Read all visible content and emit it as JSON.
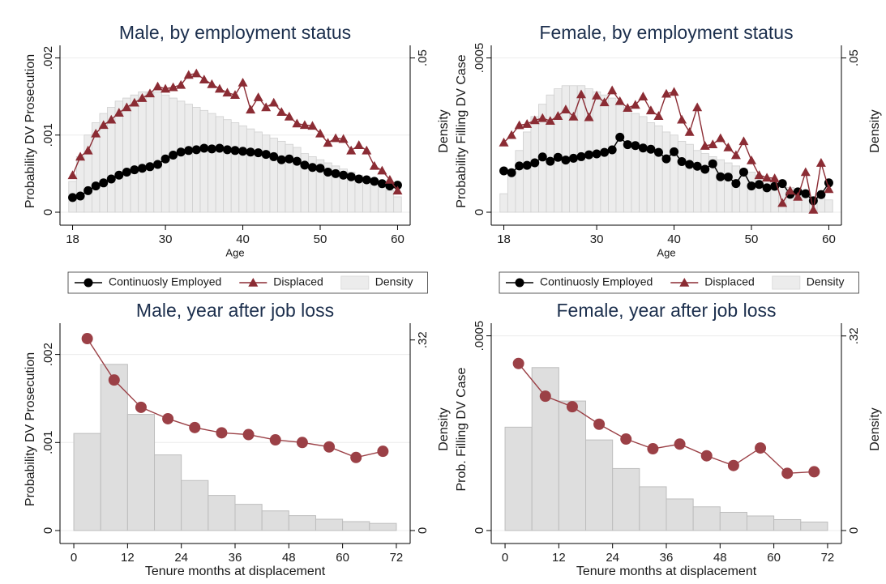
{
  "chart_data": [
    {
      "type": "combo",
      "title": "Male, by employment status",
      "y_label": "Probability DV Prosecution",
      "y2_label": "Density",
      "x_label": "Age",
      "x": [
        18,
        19,
        20,
        21,
        22,
        23,
        24,
        25,
        26,
        27,
        28,
        29,
        30,
        31,
        32,
        33,
        34,
        35,
        36,
        37,
        38,
        39,
        40,
        41,
        42,
        43,
        44,
        45,
        46,
        47,
        48,
        49,
        50,
        51,
        52,
        53,
        54,
        55,
        56,
        57,
        58,
        59,
        60
      ],
      "series": [
        {
          "name": "Continuosly Employed",
          "type": "line",
          "marker": "circle",
          "color": "#000000",
          "values": [
            0.00019,
            0.00021,
            0.00028,
            0.00034,
            0.00038,
            0.00043,
            0.00048,
            0.00052,
            0.00055,
            0.00057,
            0.00059,
            0.00062,
            0.00069,
            0.00074,
            0.00078,
            0.0008,
            0.00081,
            0.00083,
            0.00082,
            0.00083,
            0.00081,
            0.0008,
            0.00079,
            0.00078,
            0.00077,
            0.00075,
            0.00072,
            0.00068,
            0.00069,
            0.00066,
            0.00061,
            0.00058,
            0.00057,
            0.00052,
            0.0005,
            0.00048,
            0.00046,
            0.00043,
            0.00042,
            0.0004,
            0.00037,
            0.00034,
            0.00035
          ]
        },
        {
          "name": "Displaced",
          "type": "line",
          "marker": "triangle",
          "color": "#8b2c34",
          "values": [
            0.00048,
            0.00072,
            0.0008,
            0.00102,
            0.00113,
            0.0012,
            0.00129,
            0.00136,
            0.00142,
            0.00148,
            0.00154,
            0.00163,
            0.0016,
            0.00162,
            0.00165,
            0.00178,
            0.0018,
            0.00172,
            0.00166,
            0.0016,
            0.00155,
            0.00152,
            0.00168,
            0.00133,
            0.00149,
            0.00136,
            0.00142,
            0.0013,
            0.00124,
            0.00115,
            0.00113,
            0.00112,
            0.00102,
            0.0009,
            0.00096,
            0.00095,
            0.0008,
            0.00087,
            0.0008,
            0.0006,
            0.00054,
            0.00042,
            0.00028
          ]
        },
        {
          "name": "Density",
          "type": "bar",
          "axis": "y2",
          "color": "#ececec",
          "values": [
            0.01,
            0.018,
            0.025,
            0.029,
            0.032,
            0.034,
            0.036,
            0.037,
            0.038,
            0.039,
            0.039,
            0.039,
            0.038,
            0.037,
            0.036,
            0.035,
            0.034,
            0.033,
            0.032,
            0.031,
            0.03,
            0.029,
            0.028,
            0.027,
            0.026,
            0.025,
            0.024,
            0.023,
            0.022,
            0.021,
            0.019,
            0.018,
            0.017,
            0.016,
            0.015,
            0.014,
            0.013,
            0.012,
            0.011,
            0.01,
            0.008,
            0.007,
            0.005
          ]
        }
      ],
      "xlim": [
        17,
        61
      ],
      "xticks": [
        18,
        30,
        40,
        50,
        60
      ],
      "ylim": [
        0,
        0.0021
      ],
      "yticks": [
        0,
        {
          "value": 0.001,
          "label": ".001"
        },
        {
          "value": 0.002,
          "label": ".002"
        }
      ],
      "y2lim": [
        0,
        0.0525
      ],
      "y2ticks": [
        {
          "value": 0.05,
          "label": ".05"
        }
      ],
      "grid": true,
      "legend": "bottom"
    },
    {
      "type": "combo",
      "title": "Female, by employment status",
      "y_label": "Probability Filling DV Case",
      "y2_label": "Density",
      "x_label": "Age",
      "x": [
        18,
        19,
        20,
        21,
        22,
        23,
        24,
        25,
        26,
        27,
        28,
        29,
        30,
        31,
        32,
        33,
        34,
        35,
        36,
        37,
        38,
        39,
        40,
        41,
        42,
        43,
        44,
        45,
        46,
        47,
        48,
        49,
        50,
        51,
        52,
        53,
        54,
        55,
        56,
        57,
        58,
        59,
        60
      ],
      "series": [
        {
          "name": "Continuosly Employed",
          "type": "line",
          "marker": "circle",
          "color": "#000000",
          "values": [
            0.000134,
            0.000128,
            0.00015,
            0.000152,
            0.00016,
            0.000179,
            0.000165,
            0.000178,
            0.000169,
            0.000175,
            0.00018,
            0.000186,
            0.000189,
            0.000194,
            0.000202,
            0.000243,
            0.000219,
            0.000216,
            0.000208,
            0.000204,
            0.000194,
            0.000173,
            0.000196,
            0.000164,
            0.000155,
            0.000149,
            0.000139,
            0.000157,
            0.000115,
            0.000114,
            9.3e-05,
            0.00013,
            8.5e-05,
            9e-05,
            7.9e-05,
            8.4e-05,
            9.3e-05,
            5.8e-05,
            6.6e-05,
            6e-05,
            3.7e-05,
            5.7e-05,
            9.5e-05
          ]
        },
        {
          "name": "Displaced",
          "type": "line",
          "marker": "triangle",
          "color": "#8b2c34",
          "values": [
            0.000226,
            0.00025,
            0.000282,
            0.000286,
            0.000298,
            0.000305,
            0.000296,
            0.000312,
            0.000333,
            0.00031,
            0.000382,
            0.000308,
            0.000378,
            0.000356,
            0.000395,
            0.00036,
            0.000338,
            0.000348,
            0.000375,
            0.00033,
            0.000312,
            0.000384,
            0.00039,
            0.0003,
            0.00026,
            0.00034,
            0.000215,
            0.00022,
            0.00024,
            0.00021,
            0.000185,
            0.00023,
            0.000168,
            0.00012,
            0.000112,
            0.00011,
            3e-05,
            7e-05,
            5e-05,
            0.00013,
            8e-06,
            0.00016,
            7.5e-05
          ]
        },
        {
          "name": "Density",
          "type": "bar",
          "axis": "y2",
          "color": "#ececec",
          "values": [
            0.006,
            0.013,
            0.02,
            0.026,
            0.031,
            0.035,
            0.038,
            0.04,
            0.041,
            0.041,
            0.041,
            0.04,
            0.039,
            0.038,
            0.037,
            0.035,
            0.034,
            0.032,
            0.031,
            0.029,
            0.028,
            0.026,
            0.025,
            0.023,
            0.022,
            0.02,
            0.019,
            0.018,
            0.017,
            0.016,
            0.015,
            0.014,
            0.013,
            0.012,
            0.011,
            0.01,
            0.009,
            0.008,
            0.007,
            0.006,
            0.005,
            0.005,
            0.004
          ]
        }
      ],
      "xlim": [
        17,
        61
      ],
      "xticks": [
        18,
        30,
        40,
        50,
        60
      ],
      "ylim": [
        0,
        0.000525
      ],
      "yticks": [
        0,
        {
          "value": 0.0005,
          "label": ".0005"
        }
      ],
      "y2lim": [
        0,
        0.0525
      ],
      "y2ticks": [
        {
          "value": 0.05,
          "label": ".05"
        }
      ],
      "grid": true,
      "legend": "bottom"
    },
    {
      "type": "combo",
      "title": "Male, year after job loss",
      "y_label": "Probability DV Prosecution",
      "y2_label": "Density",
      "x_label": "Tenure months at displacement",
      "x": [
        3,
        9,
        15,
        21,
        27,
        33,
        39,
        45,
        51,
        57,
        63,
        69
      ],
      "series": [
        {
          "type": "line",
          "marker": "circle",
          "color": "#9b4046",
          "values": [
            0.00218,
            0.00171,
            0.0014,
            0.00127,
            0.00117,
            0.00111,
            0.00109,
            0.00103,
            0.001,
            0.00095,
            0.00083,
            0.0009
          ]
        },
        {
          "type": "histogram",
          "axis": "y2",
          "color": "#dedede",
          "bins": [
            0,
            6,
            12,
            18,
            24,
            30,
            36,
            42,
            48,
            54,
            60,
            66,
            72
          ],
          "values": [
            0.163,
            0.279,
            0.195,
            0.127,
            0.084,
            0.059,
            0.044,
            0.033,
            0.025,
            0.019,
            0.015,
            0.012
          ]
        }
      ],
      "xlim": [
        -2,
        74
      ],
      "xticks": [
        0,
        12,
        24,
        36,
        48,
        60,
        72
      ],
      "ylim": [
        0,
        0.0023
      ],
      "yticks": [
        0,
        {
          "value": 0.001,
          "label": ".001"
        },
        {
          "value": 0.002,
          "label": ".002"
        }
      ],
      "y2lim": [
        0,
        0.34
      ],
      "y2ticks": [
        0,
        {
          "value": 0.32,
          "label": ".32"
        }
      ],
      "grid": true
    },
    {
      "type": "combo",
      "title": "Female, year after job loss",
      "y_label": "Prob. Filling DV Case",
      "y2_label": "Density",
      "x_label": "Tenure months at displacement",
      "x": [
        3,
        9,
        15,
        21,
        27,
        33,
        39,
        45,
        51,
        57,
        63,
        69
      ],
      "series": [
        {
          "type": "line",
          "marker": "circle",
          "color": "#9b4046",
          "values": [
            0.000429,
            0.000345,
            0.000318,
            0.000273,
            0.000235,
            0.00021,
            0.000222,
            0.000192,
            0.000167,
            0.000212,
            0.000147,
            0.000151
          ]
        },
        {
          "type": "histogram",
          "axis": "y2",
          "color": "#dedede",
          "bins": [
            0,
            6,
            12,
            18,
            24,
            30,
            36,
            42,
            48,
            54,
            60,
            66,
            72
          ],
          "values": [
            0.17,
            0.268,
            0.213,
            0.149,
            0.102,
            0.072,
            0.052,
            0.039,
            0.03,
            0.024,
            0.018,
            0.014
          ]
        }
      ],
      "xlim": [
        -2,
        74
      ],
      "xticks": [
        0,
        12,
        24,
        36,
        48,
        60,
        72
      ],
      "ylim": [
        0,
        0.00052
      ],
      "yticks": [
        0,
        {
          "value": 0.0005,
          "label": ".0005"
        }
      ],
      "y2lim": [
        0,
        0.333
      ],
      "y2ticks": [
        0,
        {
          "value": 0.32,
          "label": ".32"
        }
      ],
      "grid": true
    }
  ]
}
